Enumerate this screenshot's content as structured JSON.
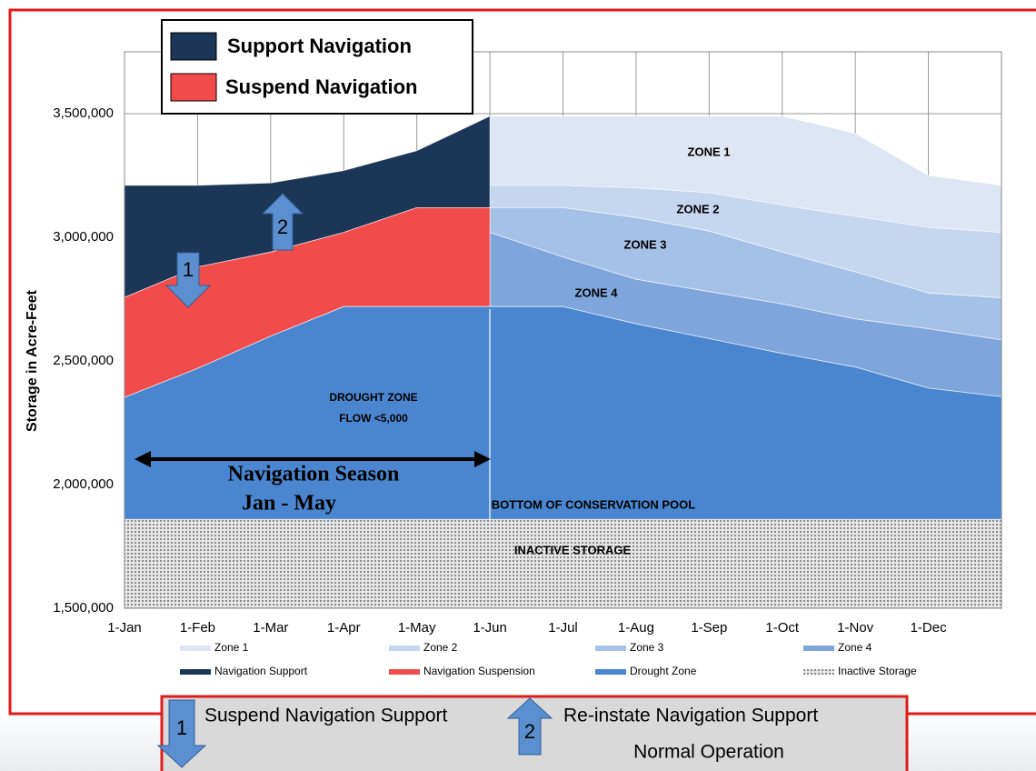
{
  "chart_data": {
    "type": "area",
    "y_label": "Storage in Acre-Feet",
    "categories": [
      "1-Jan",
      "1-Feb",
      "1-Mar",
      "1-Apr",
      "1-May",
      "1-Jun",
      "1-Jul",
      "1-Aug",
      "1-Sep",
      "1-Oct",
      "1-Nov",
      "1-Dec",
      null
    ],
    "ylim": [
      1500000,
      3750000
    ],
    "yticks": [
      {
        "value": 1500000,
        "label": "1,500,000"
      },
      {
        "value": 2000000,
        "label": "2,000,000"
      },
      {
        "value": 2500000,
        "label": "2,500,000"
      },
      {
        "value": 3000000,
        "label": "3,000,000"
      },
      {
        "value": 3500000,
        "label": "3,500,000"
      }
    ],
    "grid": true,
    "series": [
      {
        "name": "Zone 1",
        "color": "#dce6f4",
        "values": [
          null,
          null,
          null,
          null,
          null,
          3490000,
          3490000,
          3490000,
          3490000,
          3490000,
          3420000,
          3250000,
          3210000
        ]
      },
      {
        "name": "Zone 2",
        "color": "#c5d7ef",
        "values": [
          null,
          null,
          null,
          null,
          null,
          3210000,
          3210000,
          3200000,
          3180000,
          3130000,
          3085000,
          3040000,
          3020000
        ]
      },
      {
        "name": "Zone 3",
        "color": "#a6c1e7",
        "values": [
          null,
          null,
          null,
          null,
          null,
          3120000,
          3120000,
          3080000,
          3025000,
          2940000,
          2860000,
          2775000,
          2755000
        ]
      },
      {
        "name": "Zone 4",
        "color": "#7ea6dd",
        "values": [
          null,
          null,
          null,
          null,
          null,
          3020000,
          2920000,
          2830000,
          2780000,
          2730000,
          2670000,
          2630000,
          2585000
        ]
      },
      {
        "name": "Navigation Support",
        "color": "#1c3658",
        "values": [
          3210000,
          3210000,
          3220000,
          3270000,
          3350000,
          3490000,
          null,
          null,
          null,
          null,
          null,
          null,
          null
        ]
      },
      {
        "name": "Navigation Suspension",
        "color": "#f24b4b",
        "values": [
          2757000,
          2880000,
          2940000,
          3020000,
          3120000,
          3120000,
          null,
          null,
          null,
          null,
          null,
          null,
          null
        ]
      },
      {
        "name": "Drought Zone",
        "color": "#4a86d0",
        "values": [
          2353000,
          2470000,
          2600000,
          2720000,
          2720000,
          2720000,
          2720000,
          2650000,
          2590000,
          2530000,
          2475000,
          2390000,
          2355000
        ]
      },
      {
        "name": "Inactive Storage",
        "color": "#8a8a8a",
        "pattern": "dots",
        "values": [
          1860000,
          1860000,
          1860000,
          1860000,
          1860000,
          1860000,
          1860000,
          1860000,
          1860000,
          1860000,
          1860000,
          1860000,
          1860000
        ]
      }
    ],
    "nav_legend": [
      "Support Navigation",
      "Suspend Navigation"
    ],
    "annotations": [
      "ZONE 1",
      "ZONE 2",
      "ZONE 3",
      "ZONE 4",
      "DROUGHT ZONE",
      "FLOW <5,000",
      "BOTTOM OF CONSERVATION POOL",
      "INACTIVE STORAGE",
      "Navigation Season",
      "Jan - May",
      "1",
      "2"
    ]
  },
  "notes": {
    "step1_number": "1",
    "step1": "Suspend Navigation Support",
    "step2_number": "2",
    "step2": "Re-instate Navigation Support",
    "step2_sub": "Normal Operation"
  }
}
